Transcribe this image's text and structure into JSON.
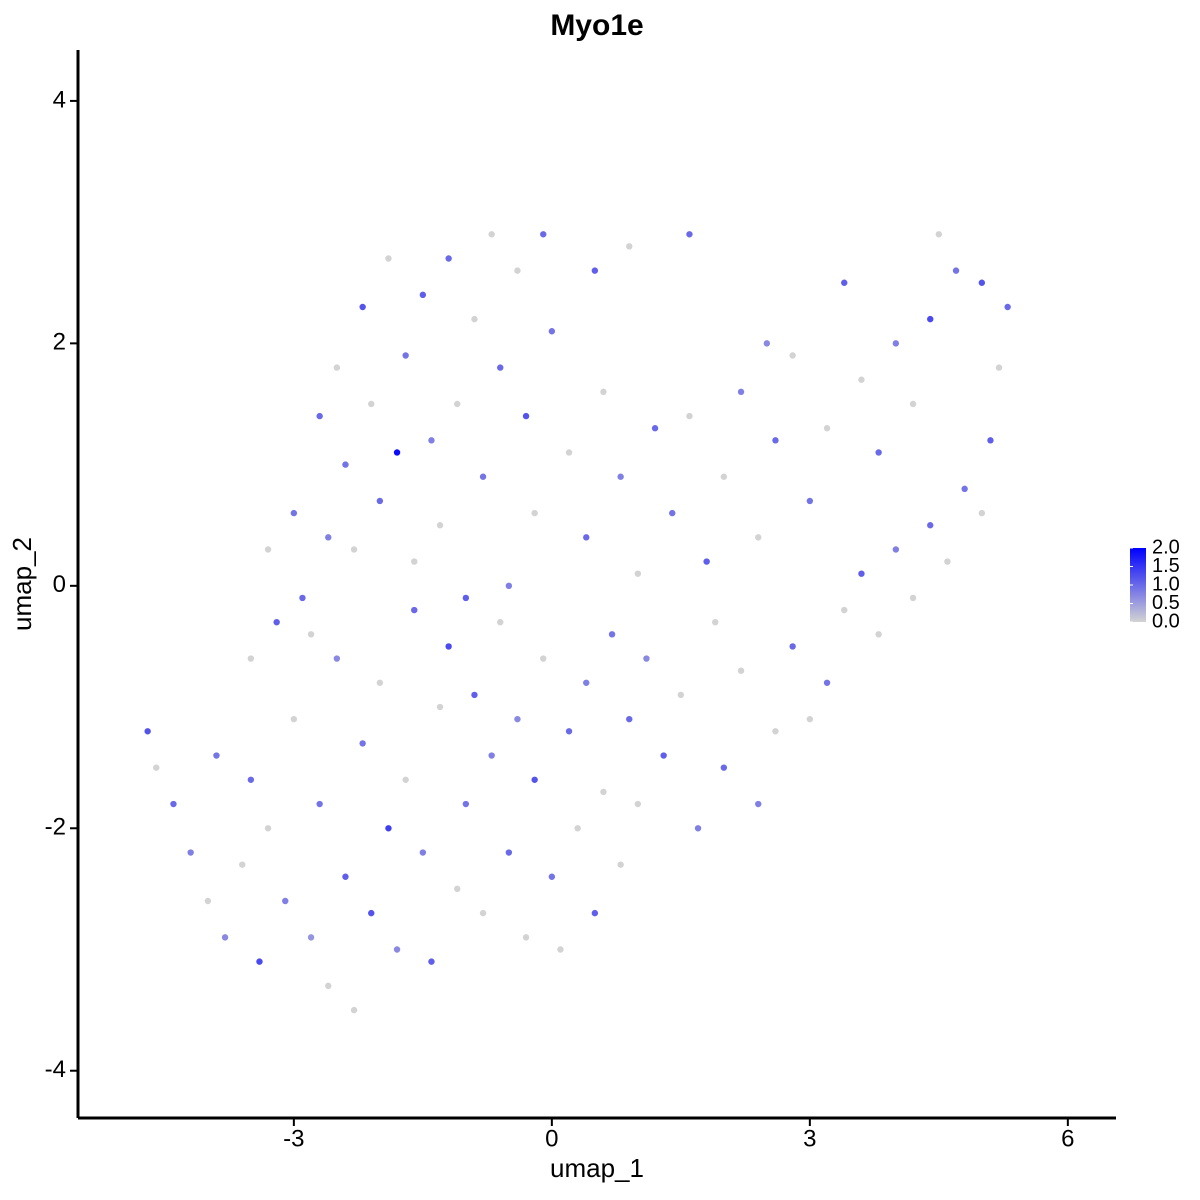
{
  "chart_data": {
    "type": "scatter",
    "title": "Myo1e",
    "x_label": "umap_1",
    "y_label": "umap_2",
    "xlim": [
      -5.51,
      6.56
    ],
    "ylim": [
      -4.39,
      4.42
    ],
    "xticks": [
      -3,
      0,
      3,
      6
    ],
    "yticks": [
      -4,
      -2,
      0,
      2,
      4
    ],
    "colors": [
      "#d3d3d3",
      "#0000ff"
    ],
    "clim": [
      0,
      2
    ],
    "cticks": [
      {
        "value": 0,
        "label": "0.0"
      },
      0.5,
      {
        "value": 1,
        "label": "1.0"
      },
      1.5,
      {
        "value": 2,
        "label": "2.0"
      }
    ],
    "x": [
      -4.7,
      -4.6,
      -4.4,
      -4.2,
      -4.0,
      -3.9,
      -3.8,
      -3.6,
      -3.5,
      -3.4,
      -3.3,
      -3.2,
      -3.1,
      -3.0,
      -2.9,
      -2.8,
      -2.7,
      -2.6,
      -2.5,
      -2.4,
      -2.3,
      -2.2,
      -2.1,
      -2.0,
      -1.9,
      -1.8,
      -1.7,
      -1.6,
      -1.5,
      -1.4,
      -1.3,
      -1.2,
      -1.1,
      -1.0,
      -0.9,
      -0.8,
      -0.7,
      -0.6,
      -0.5,
      -0.4,
      -0.3,
      -0.2,
      -0.1,
      0.0,
      0.1,
      0.2,
      0.3,
      0.4,
      0.5,
      0.6,
      0.7,
      0.8,
      0.9,
      1.0,
      1.1,
      1.3,
      1.5,
      1.7,
      1.9,
      2.0,
      2.2,
      2.4,
      2.6,
      2.8,
      3.0,
      3.2,
      3.4,
      3.6,
      3.8,
      4.0,
      4.2,
      4.4,
      4.6,
      4.8,
      5.0,
      5.1,
      5.2,
      5.3,
      5.0,
      4.7,
      4.5,
      4.4,
      4.2,
      4.0,
      3.8,
      3.6,
      3.4,
      3.2,
      3.0,
      2.8,
      2.6,
      2.4,
      2.2,
      2.0,
      1.8,
      1.6,
      1.4,
      1.2,
      1.0,
      0.8,
      0.6,
      0.4,
      0.2,
      0.0,
      -0.1,
      -0.2,
      -0.3,
      -0.4,
      -0.5,
      -0.6,
      -0.7,
      -0.8,
      -0.9,
      -1.0,
      -1.1,
      -1.2,
      -1.3,
      -1.4,
      -1.5,
      -1.6,
      -1.7,
      -1.8,
      -1.9,
      -2.0,
      -2.1,
      -2.2,
      -2.3,
      -2.4,
      -2.5,
      -2.6,
      -2.7,
      -2.8,
      -3.0,
      -3.3,
      0.5,
      0.9,
      1.6,
      2.5,
      -3.5
    ],
    "y": [
      -1.2,
      -1.5,
      -1.8,
      -2.2,
      -2.6,
      -1.4,
      -2.9,
      -2.3,
      -1.6,
      -3.1,
      -2.0,
      -0.3,
      -2.6,
      -1.1,
      -0.1,
      -2.9,
      -1.8,
      -3.3,
      -0.6,
      -2.4,
      -3.5,
      -1.3,
      -2.7,
      -0.8,
      -2.0,
      -3.0,
      -1.6,
      -0.2,
      -2.2,
      -3.1,
      -1.0,
      -0.5,
      -2.5,
      -1.8,
      -0.9,
      -2.7,
      -1.4,
      -0.3,
      -2.2,
      -1.1,
      -2.9,
      -1.6,
      -0.6,
      -2.4,
      -3.0,
      -1.2,
      -2.0,
      -0.8,
      -2.7,
      -1.7,
      -0.4,
      -2.3,
      -1.1,
      -1.8,
      -0.6,
      -1.4,
      -0.9,
      -2.0,
      -0.3,
      -1.5,
      -0.7,
      -1.8,
      -1.2,
      -0.5,
      -1.1,
      -0.8,
      -0.2,
      0.1,
      -0.4,
      0.3,
      -0.1,
      0.5,
      0.2,
      0.8,
      0.6,
      1.2,
      1.8,
      2.3,
      2.5,
      2.6,
      2.9,
      2.2,
      1.5,
      2.0,
      1.1,
      1.7,
      2.5,
      1.3,
      0.7,
      1.9,
      1.2,
      0.4,
      1.6,
      0.9,
      0.2,
      1.4,
      0.6,
      1.3,
      0.1,
      0.9,
      1.6,
      0.4,
      1.1,
      2.1,
      2.9,
      0.6,
      1.4,
      2.6,
      0.0,
      1.8,
      2.9,
      0.9,
      2.2,
      -0.1,
      1.5,
      2.7,
      0.5,
      1.2,
      2.4,
      0.2,
      1.9,
      1.1,
      2.7,
      0.7,
      1.5,
      2.3,
      0.3,
      1.0,
      1.8,
      0.4,
      1.4,
      -0.4,
      0.6,
      0.3,
      2.6,
      2.8,
      2.9,
      2.0,
      -0.6
    ],
    "values": [
      1.2,
      0,
      1.0,
      0.8,
      0,
      0.9,
      0.7,
      0,
      1.0,
      1.3,
      0,
      1.1,
      0.8,
      0,
      1.0,
      0.6,
      0.9,
      0,
      0.7,
      1.1,
      0,
      0.9,
      1.2,
      0,
      1.4,
      0.7,
      0,
      1.0,
      0.8,
      1.1,
      0,
      1.3,
      0,
      0.9,
      1.1,
      0,
      0.8,
      0,
      1.0,
      0.7,
      0,
      1.2,
      0,
      0.9,
      0,
      1.0,
      0,
      0.8,
      1.1,
      0,
      0.9,
      0,
      1.0,
      0,
      0.7,
      1.1,
      0,
      0.8,
      0,
      1.0,
      0,
      0.8,
      0,
      1.0,
      0,
      0.9,
      0,
      1.1,
      0,
      0.8,
      0,
      1.0,
      0,
      0.9,
      0,
      1.1,
      0,
      1.0,
      1.2,
      0.9,
      0,
      1.3,
      0,
      0.8,
      1.0,
      0,
      1.1,
      0,
      0.9,
      0,
      1.0,
      0,
      0.8,
      0,
      1.1,
      0,
      0.9,
      1.0,
      0,
      0.8,
      0,
      1.0,
      0,
      0.9,
      1.0,
      0,
      1.2,
      0,
      0.8,
      1.0,
      0,
      0.9,
      0,
      1.1,
      0,
      1.0,
      0,
      0.8,
      1.1,
      0,
      0.9,
      1.9,
      0,
      1.0,
      0,
      1.2,
      0,
      0.9,
      0,
      0.8,
      1.0,
      0,
      0.9,
      0,
      1.1,
      0,
      1.0,
      0.7,
      0
    ]
  }
}
